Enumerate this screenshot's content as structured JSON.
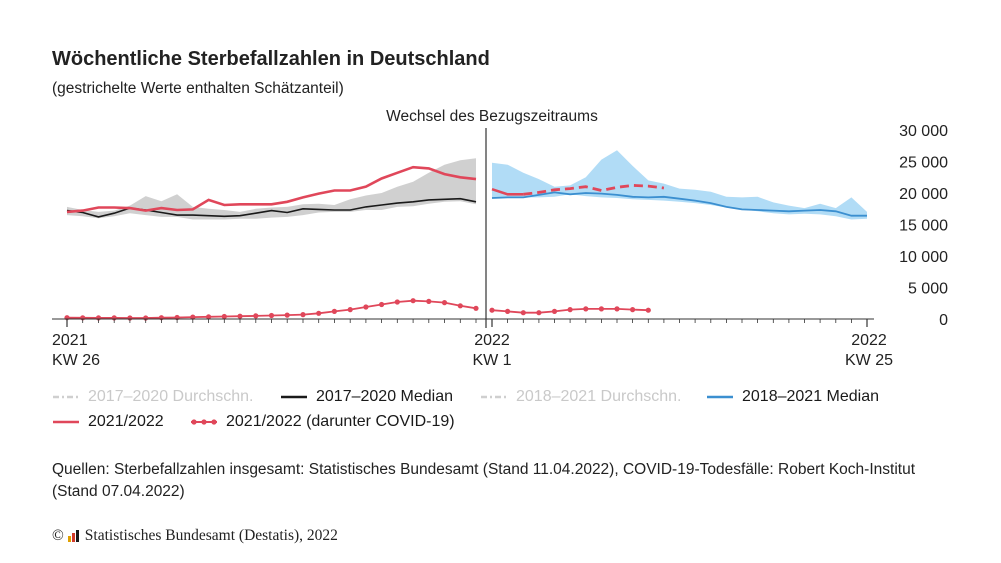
{
  "header": {
    "title": "Wöchentliche Sterbefallzahlen in Deutschland",
    "subtitle": "(gestrichelte Werte enthalten Schätzanteil)"
  },
  "legend": [
    {
      "label": "2017–2020 Durchschn.",
      "style": "dashdot",
      "color": "#cfcfcf",
      "faded": true
    },
    {
      "label": "2017–2020 Median",
      "style": "solid",
      "color": "#1a1a1a",
      "faded": false
    },
    {
      "label": "2018–2021 Durchschn.",
      "style": "dashdot",
      "color": "#cfcfcf",
      "faded": true
    },
    {
      "label": "2018–2021 Median",
      "style": "solid",
      "color": "#3b8fd0",
      "faded": false
    },
    {
      "label": "2021/2022",
      "style": "solid",
      "color": "#e0475a",
      "faded": false
    },
    {
      "label": "2021/2022 (darunter COVID-19)",
      "style": "dots",
      "color": "#e0475a",
      "faded": false
    }
  ],
  "footer": {
    "source": "Quellen: Sterbefallzahlen insgesamt: Statistisches Bundesamt (Stand 11.04.2022), COVID-19-Todesfälle: Robert Koch-Institut (Stand 07.04.2022)",
    "copyright_symbol": "©",
    "copyright": "Statistisches Bundesamt (Destatis), 2022"
  },
  "chart_data": {
    "type": "line",
    "annotation": "Wechsel des Bezugszeitraums",
    "y_ticks": [
      "30 000",
      "25 000",
      "20 000",
      "15 000",
      "10 000",
      "5 000",
      "0"
    ],
    "ylim": [
      0,
      30000
    ],
    "grid": false,
    "x_labels": [
      {
        "year": "2021",
        "week": "KW 26"
      },
      {
        "year": "2022",
        "week": "KW 1"
      },
      {
        "year": "2022",
        "week": "KW 25"
      }
    ],
    "colors": {
      "band_2017_2020": "#c8c8c8",
      "band_2018_2021": "#a9d8f5",
      "median_2017_2020": "#1a1a1a",
      "median_2018_2021": "#3b8fd0",
      "current": "#e0475a"
    },
    "segment_2021": {
      "weeks": [
        26,
        27,
        28,
        29,
        30,
        31,
        32,
        33,
        34,
        35,
        36,
        37,
        38,
        39,
        40,
        41,
        42,
        43,
        44,
        45,
        46,
        47,
        48,
        49,
        50,
        51,
        52
      ],
      "band_low": [
        16500,
        16300,
        16000,
        16300,
        16800,
        16500,
        16200,
        16200,
        15800,
        15800,
        15800,
        15900,
        15900,
        16100,
        16200,
        16500,
        16900,
        17000,
        17000,
        17300,
        17300,
        17800,
        17900,
        18300,
        18600,
        18700,
        18200
      ],
      "band_high": [
        17800,
        17300,
        17000,
        17200,
        18000,
        19500,
        18700,
        19800,
        17800,
        17500,
        17300,
        17000,
        17500,
        17700,
        17800,
        18200,
        18300,
        18100,
        19000,
        19600,
        20000,
        21000,
        21800,
        23200,
        24500,
        25200,
        25500
      ],
      "median_2017_2020": [
        17200,
        16900,
        16200,
        16800,
        17600,
        17300,
        16900,
        16500,
        16500,
        16400,
        16300,
        16400,
        16800,
        17200,
        16900,
        17500,
        17400,
        17300,
        17300,
        17800,
        18100,
        18400,
        18600,
        18900,
        19000,
        19100,
        18600
      ],
      "deaths": [
        17000,
        17200,
        17700,
        17700,
        17600,
        17200,
        17600,
        17300,
        17400,
        18900,
        18100,
        18200,
        18200,
        18200,
        18600,
        19300,
        19900,
        20400,
        20400,
        21000,
        22300,
        23200,
        24100,
        23900,
        23000,
        22500,
        22200
      ],
      "covid": [
        200,
        190,
        180,
        170,
        160,
        160,
        200,
        240,
        300,
        350,
        400,
        450,
        500,
        560,
        620,
        700,
        900,
        1200,
        1500,
        1900,
        2300,
        2700,
        2900,
        2800,
        2600,
        2100,
        1700
      ]
    },
    "segment_2022": {
      "weeks": [
        1,
        2,
        3,
        4,
        5,
        6,
        7,
        8,
        9,
        10,
        11,
        12,
        13,
        14,
        15,
        16,
        17,
        18,
        19,
        20,
        21,
        22,
        23,
        24,
        25
      ],
      "band_low": [
        19200,
        19300,
        19300,
        19300,
        19400,
        19800,
        19500,
        19300,
        19200,
        19000,
        18900,
        18800,
        18600,
        18400,
        18100,
        17700,
        17400,
        17100,
        16800,
        16600,
        16700,
        16600,
        16300,
        15800,
        15900
      ],
      "band_high": [
        24800,
        24500,
        23200,
        22200,
        21000,
        21200,
        22500,
        25300,
        26800,
        24300,
        22000,
        21500,
        20700,
        20500,
        20200,
        19400,
        19300,
        19400,
        18500,
        18000,
        17600,
        18300,
        17600,
        19300,
        17000
      ],
      "median_2018_2021": [
        19200,
        19300,
        19300,
        19700,
        20100,
        19800,
        20000,
        19900,
        19700,
        19400,
        19300,
        19400,
        19100,
        18800,
        18400,
        17800,
        17400,
        17300,
        17200,
        17100,
        17200,
        17300,
        17100,
        16400,
        16400
      ],
      "deaths": [
        20600,
        19800,
        19800,
        20100,
        20500,
        20700,
        21000,
        20400,
        20900,
        21200,
        21100,
        20800
      ],
      "deaths_estimated_from_week": 3,
      "covid": [
        1400,
        1200,
        1000,
        1000,
        1200,
        1500,
        1600,
        1600,
        1600,
        1500,
        1400
      ]
    }
  }
}
